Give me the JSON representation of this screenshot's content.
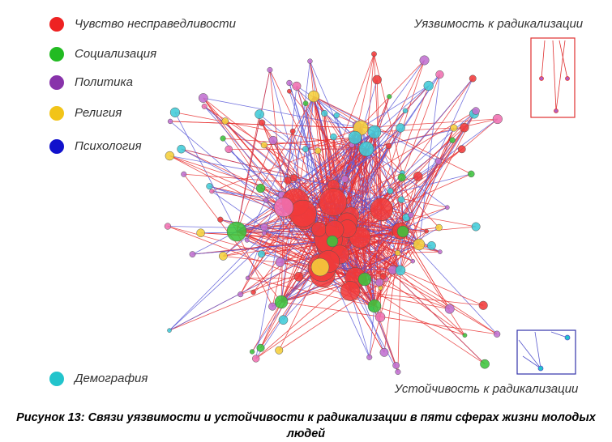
{
  "legend": [
    {
      "label": "Чувство несправедливости",
      "color": "#ee2222"
    },
    {
      "label": "Социализация",
      "color": "#22bb22"
    },
    {
      "label": "Политика",
      "color": "#8833aa"
    },
    {
      "label": "Религия",
      "color": "#f2c418"
    },
    {
      "label": "Психология",
      "color": "#1111cc"
    },
    {
      "label": "Демография",
      "color": "#22c4cc"
    }
  ],
  "annotations": {
    "vulnerability": "Уязвимость к радикализации",
    "resilience": "Устойчивость к радикализации"
  },
  "caption": "Рисунок 13: Связи уязвимости и устойчивости к радикализации в пяти сферах жизни молодых людей"
}
